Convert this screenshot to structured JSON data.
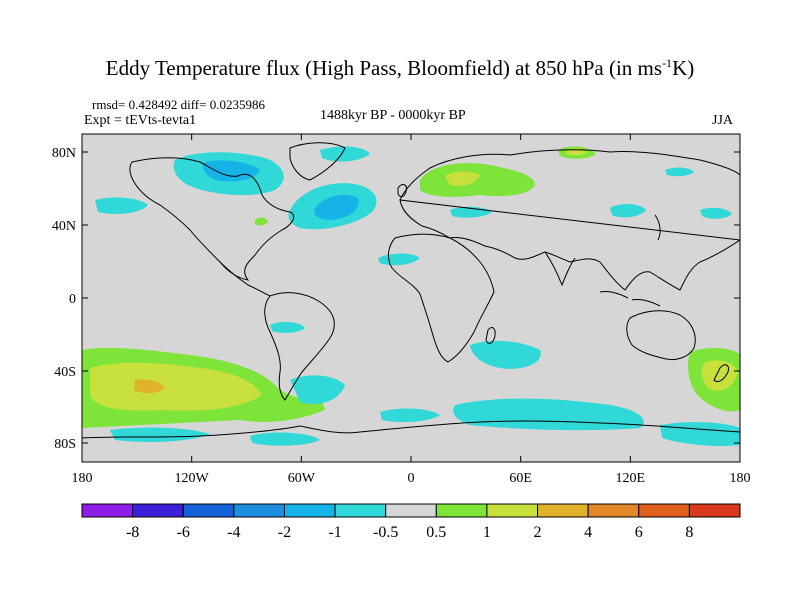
{
  "header": {
    "title_main": "Eddy Temperature flux (High Pass, Bloomfield) at 850 hPa (in ms",
    "title_sup": "-1",
    "title_end": "K)",
    "stats": "rmsd= 0.428492  diff= 0.0235986",
    "experiment": "Expt = tEVts-tevta1",
    "period": "1488kyr BP - 0000kyr BP",
    "season": "JJA"
  },
  "axes": {
    "y_ticks": [
      "80N",
      "40N",
      "0",
      "40S",
      "80S"
    ],
    "x_ticks": [
      "180",
      "120W",
      "60W",
      "0",
      "60E",
      "120E",
      "180"
    ]
  },
  "colorbar": {
    "labels": [
      "-8",
      "-6",
      "-4",
      "-2",
      "-1",
      "-0.5",
      "0.5",
      "1",
      "2",
      "4",
      "6",
      "8"
    ],
    "colors": [
      "#8c1ee8",
      "#3c1fd9",
      "#1460d8",
      "#1c8fe0",
      "#16b4e6",
      "#30d8d8",
      "#d6d6d6",
      "#7ee43a",
      "#c8e03c",
      "#e0b22a",
      "#e0882a",
      "#e0601e",
      "#d8381c"
    ]
  },
  "map": {
    "background": "#d6d6d6"
  }
}
